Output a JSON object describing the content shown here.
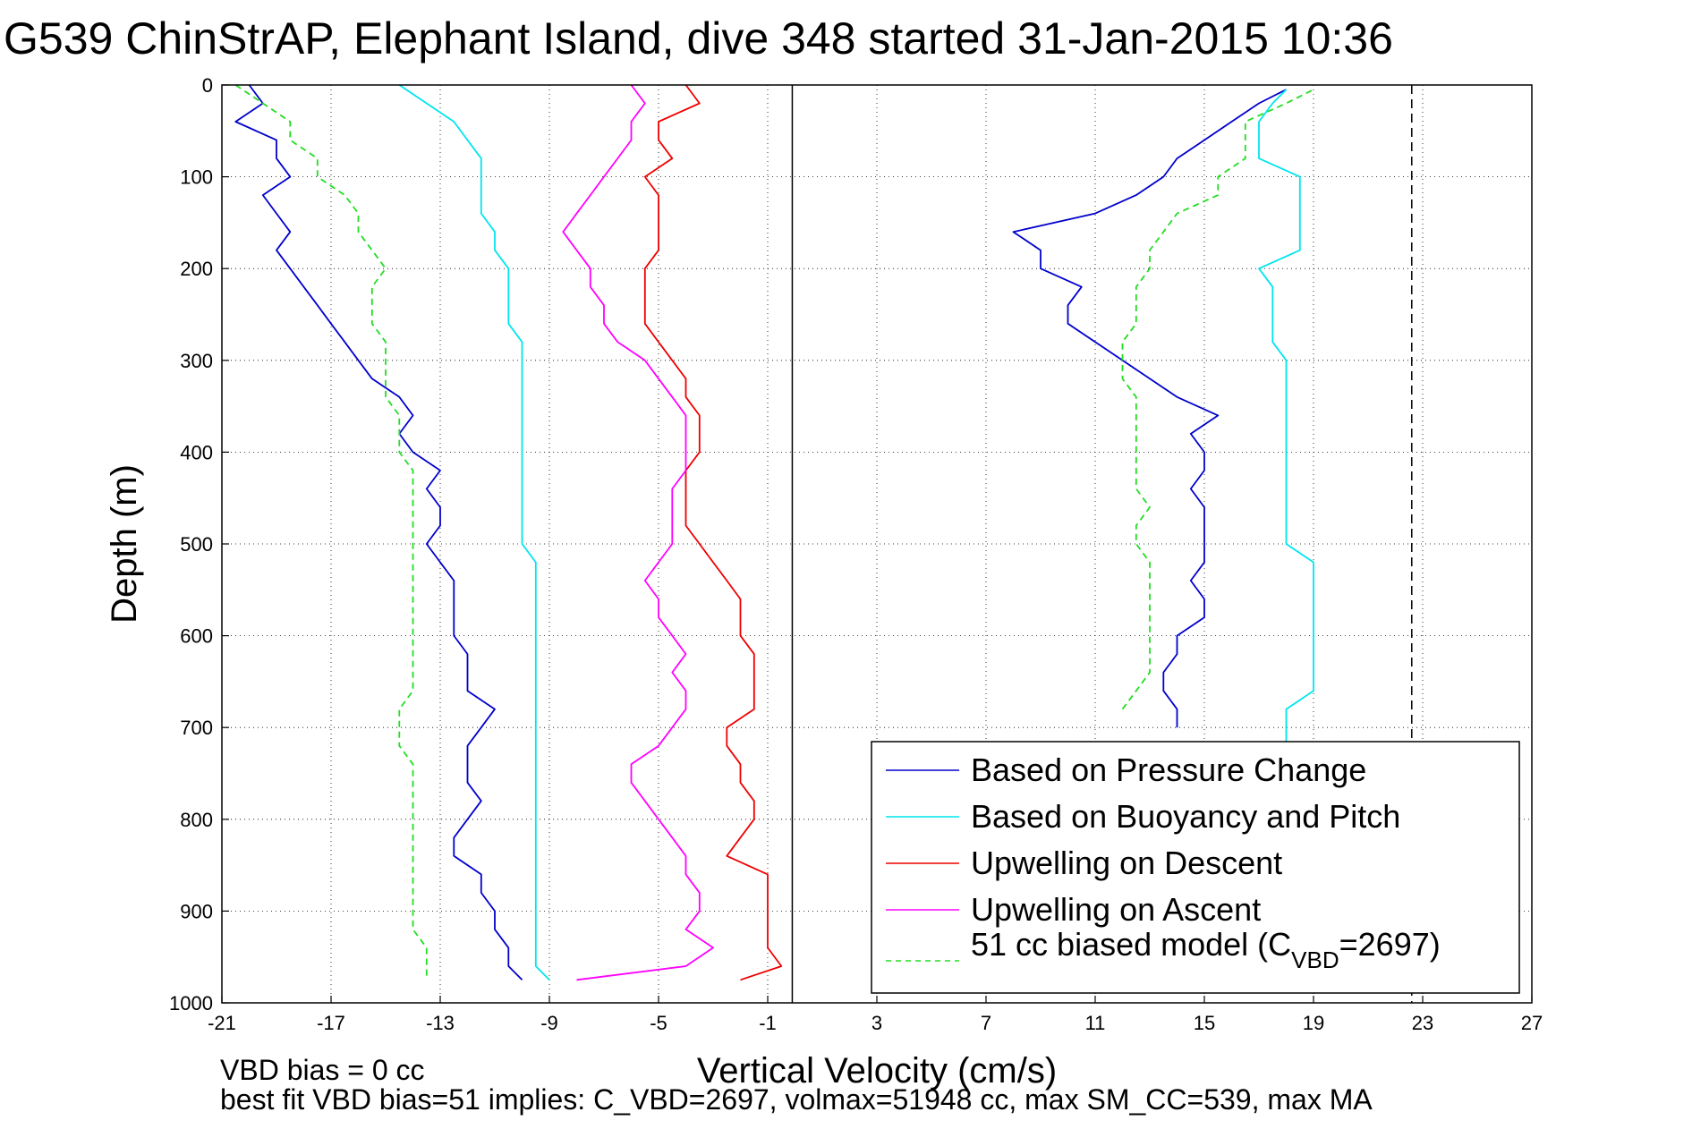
{
  "figure": {
    "title": "G539 ChinStrAP, Elephant Island, dive 348 started 31-Jan-2015 10:36",
    "footnote_1": "VBD bias = 0 cc",
    "footnote_2": "best fit VBD bias=51 implies: C_VBD=2697, volmax=51948 cc, max SM_CC=539, max MA"
  },
  "chart_data": {
    "type": "line",
    "title": "G539 ChinStrAP, Elephant Island, dive 348 started 31-Jan-2015 10:36",
    "xlabel": "Vertical Velocity (cm/s)",
    "ylabel": "Depth (m)",
    "xlim": [
      -21,
      27
    ],
    "ylim": [
      0,
      1000
    ],
    "y_reversed": true,
    "xticks": [
      -21,
      -17,
      -13,
      -9,
      -5,
      -1,
      3,
      7,
      11,
      15,
      19,
      23,
      27
    ],
    "yticks": [
      0,
      100,
      200,
      300,
      400,
      500,
      600,
      700,
      800,
      900,
      1000
    ],
    "grid": true,
    "legend_position": "bottom-right",
    "reference_lines": [
      {
        "x": -0.1,
        "style": "solid",
        "color": "#000000"
      },
      {
        "x": 22.6,
        "style": "dashed",
        "color": "#000000"
      }
    ],
    "series": [
      {
        "name": "Based on Pressure Change",
        "color": "#0000cc",
        "style": "solid",
        "depth": [
          0,
          20,
          40,
          60,
          80,
          100,
          120,
          140,
          160,
          180,
          200,
          220,
          240,
          260,
          280,
          300,
          320,
          340,
          360,
          380,
          400,
          420,
          440,
          460,
          480,
          500,
          520,
          540,
          560,
          580,
          600,
          620,
          640,
          660,
          680,
          700,
          720,
          740,
          760,
          780,
          800,
          820,
          840,
          860,
          880,
          900,
          920,
          940,
          960,
          975
        ],
        "values": [
          -20,
          -19.5,
          -20.5,
          -19,
          -19,
          -18.5,
          -19.5,
          -19,
          -18.5,
          -19,
          -18.5,
          -18,
          -17.5,
          -17,
          -16.5,
          -16,
          -15.5,
          -14.5,
          -14,
          -14.5,
          -14,
          -13,
          -13.5,
          -13,
          -13,
          -13.5,
          -13,
          -12.5,
          -12.5,
          -12.5,
          -12.5,
          -12,
          -12,
          -12,
          -11,
          -11.5,
          -12,
          -12,
          -12,
          -11.5,
          -12,
          -12.5,
          -12.5,
          -11.5,
          -11.5,
          -11,
          -11,
          -10.5,
          -10.5,
          -10
        ],
        "ascent_depth": [
          975,
          960,
          940,
          920,
          900,
          880,
          860,
          840,
          820,
          800,
          780,
          760,
          740,
          720,
          700,
          680,
          660,
          640,
          620,
          600,
          580,
          560,
          540,
          520,
          500,
          480,
          460,
          440,
          420,
          400,
          380,
          360,
          340,
          320,
          300,
          280,
          260,
          240,
          220,
          200,
          180,
          160,
          140,
          120,
          100,
          80,
          60,
          40,
          20,
          5
        ],
        "ascent_values": [
          null,
          null,
          null,
          null,
          null,
          null,
          null,
          null,
          null,
          null,
          null,
          null,
          null,
          null,
          14,
          14,
          13.5,
          13.5,
          14,
          14,
          15,
          15,
          14.5,
          15,
          15,
          15,
          15,
          14.5,
          15,
          15,
          14.5,
          15.5,
          14,
          13,
          12,
          11,
          10,
          10,
          10.5,
          9,
          9,
          8,
          11,
          12.5,
          13.5,
          14,
          15,
          16,
          17,
          18
        ]
      },
      {
        "name": "Based on Buoyancy and Pitch",
        "color": "#00e5ee",
        "style": "solid",
        "depth": [
          0,
          20,
          40,
          60,
          80,
          100,
          120,
          140,
          160,
          180,
          200,
          220,
          240,
          260,
          280,
          300,
          320,
          340,
          360,
          380,
          400,
          420,
          440,
          460,
          480,
          500,
          520,
          540,
          560,
          580,
          600,
          620,
          640,
          660,
          680,
          700,
          720,
          740,
          760,
          780,
          800,
          820,
          840,
          860,
          880,
          900,
          920,
          940,
          960,
          975
        ],
        "values": [
          -14.5,
          -13.5,
          -12.5,
          -12,
          -11.5,
          -11.5,
          -11.5,
          -11.5,
          -11,
          -11,
          -10.5,
          -10.5,
          -10.5,
          -10.5,
          -10,
          -10,
          -10,
          -10,
          -10,
          -10,
          -10,
          -10,
          -10,
          -10,
          -10,
          -10,
          -9.5,
          -9.5,
          -9.5,
          -9.5,
          -9.5,
          -9.5,
          -9.5,
          -9.5,
          -9.5,
          -9.5,
          -9.5,
          -9.5,
          -9.5,
          -9.5,
          -9.5,
          -9.5,
          -9.5,
          -9.5,
          -9.5,
          -9.5,
          -9.5,
          -9.5,
          -9.5,
          -9
        ],
        "ascent_depth": [
          720,
          700,
          680,
          660,
          640,
          620,
          600,
          580,
          560,
          540,
          520,
          500,
          480,
          460,
          440,
          420,
          400,
          380,
          360,
          340,
          320,
          300,
          280,
          260,
          240,
          220,
          200,
          180,
          160,
          140,
          120,
          100,
          80,
          60,
          40,
          20,
          5
        ],
        "ascent_values": [
          18,
          18,
          18,
          19,
          19,
          19,
          19,
          19,
          19,
          19,
          19,
          18,
          18,
          18,
          18,
          18,
          18,
          18,
          18,
          18,
          18,
          18,
          17.5,
          17.5,
          17.5,
          17.5,
          17,
          18.5,
          18.5,
          18.5,
          18.5,
          18.5,
          17,
          17,
          17,
          17.5,
          18
        ]
      },
      {
        "name": "Upwelling on Descent",
        "color": "#ee0000",
        "style": "solid",
        "depth": [
          0,
          20,
          40,
          60,
          80,
          100,
          120,
          140,
          160,
          180,
          200,
          220,
          240,
          260,
          280,
          300,
          320,
          340,
          360,
          380,
          400,
          420,
          440,
          460,
          480,
          500,
          520,
          540,
          560,
          580,
          600,
          620,
          640,
          660,
          680,
          700,
          720,
          740,
          760,
          780,
          800,
          820,
          840,
          860,
          880,
          900,
          920,
          940,
          960,
          975
        ],
        "values": [
          -4,
          -3.5,
          -5,
          -5,
          -4.5,
          -5.5,
          -5,
          -5,
          -5,
          -5,
          -5.5,
          -5.5,
          -5.5,
          -5.5,
          -5,
          -4.5,
          -4,
          -4,
          -3.5,
          -3.5,
          -3.5,
          -4,
          -4,
          -4,
          -4,
          -3.5,
          -3,
          -2.5,
          -2,
          -2,
          -2,
          -1.5,
          -1.5,
          -1.5,
          -1.5,
          -2.5,
          -2.5,
          -2,
          -2,
          -1.5,
          -1.5,
          -2,
          -2.5,
          -1,
          -1,
          -1,
          -1,
          -1,
          -0.5,
          -2
        ]
      },
      {
        "name": "Upwelling on Ascent",
        "color": "#ff00ff",
        "style": "solid",
        "depth": [
          0,
          20,
          40,
          60,
          80,
          100,
          120,
          140,
          160,
          180,
          200,
          220,
          240,
          260,
          280,
          300,
          320,
          340,
          360,
          380,
          400,
          420,
          440,
          460,
          480,
          500,
          520,
          540,
          560,
          580,
          600,
          620,
          640,
          660,
          680,
          700,
          720,
          740,
          760,
          780,
          800,
          820,
          840,
          860,
          880,
          900,
          920,
          940,
          960,
          975
        ],
        "values": [
          -6,
          -5.5,
          -6,
          -6,
          -6.5,
          -7,
          -7.5,
          -8,
          -8.5,
          -8,
          -7.5,
          -7.5,
          -7,
          -7,
          -6.5,
          -5.5,
          -5,
          -4.5,
          -4,
          -4,
          -4,
          -4,
          -4.5,
          -4.5,
          -4.5,
          -4.5,
          -5,
          -5.5,
          -5,
          -5,
          -4.5,
          -4,
          -4.5,
          -4,
          -4,
          -4.5,
          -5,
          -6,
          -6,
          -5.5,
          -5,
          -4.5,
          -4,
          -4,
          -3.5,
          -3.5,
          -4,
          -3,
          -4,
          -8
        ]
      },
      {
        "name": "51 cc biased model (C_VBD=2697)",
        "color": "#22dd22",
        "style": "dashed",
        "depth": [
          0,
          20,
          40,
          60,
          80,
          100,
          120,
          140,
          160,
          180,
          200,
          220,
          240,
          260,
          280,
          300,
          320,
          340,
          360,
          380,
          400,
          420,
          440,
          460,
          480,
          500,
          520,
          540,
          560,
          580,
          600,
          620,
          640,
          660,
          680,
          700,
          720,
          740,
          760,
          780,
          800,
          820,
          840,
          860,
          880,
          900,
          920,
          940,
          960,
          975
        ],
        "values": [
          -20.5,
          -19.5,
          -18.5,
          -18.5,
          -17.5,
          -17.5,
          -16.5,
          -16,
          -16,
          -15.5,
          -15,
          -15.5,
          -15.5,
          -15.5,
          -15,
          -15,
          -15,
          -15,
          -14.5,
          -14.5,
          -14.5,
          -14,
          -14,
          -14,
          -14,
          -14,
          -14,
          -14,
          -14,
          -14,
          -14,
          -14,
          -14,
          -14,
          -14.5,
          -14.5,
          -14.5,
          -14,
          -14,
          -14,
          -14,
          -14,
          -14,
          -14,
          -14,
          -14,
          -14,
          -13.5,
          -13.5,
          -13.5
        ],
        "ascent_depth": [
          680,
          660,
          640,
          620,
          600,
          580,
          560,
          540,
          520,
          500,
          480,
          460,
          440,
          420,
          400,
          380,
          360,
          340,
          320,
          300,
          280,
          260,
          240,
          220,
          200,
          180,
          160,
          140,
          120,
          100,
          80,
          60,
          40,
          20,
          5
        ],
        "ascent_values": [
          12,
          12.5,
          13,
          13,
          13,
          13,
          13,
          13,
          13,
          12.5,
          12.5,
          13,
          12.5,
          12.5,
          12.5,
          12.5,
          12.5,
          12.5,
          12,
          12,
          12,
          12.5,
          12.5,
          12.5,
          13,
          13,
          13.5,
          14,
          15.5,
          15.5,
          16.5,
          16.5,
          16.5,
          18,
          19
        ]
      }
    ]
  },
  "legend": {
    "items": [
      {
        "label": "Based on Pressure Change",
        "color": "#0000cc",
        "dash": ""
      },
      {
        "label": "Based on Buoyancy and Pitch",
        "color": "#00e5ee",
        "dash": ""
      },
      {
        "label": "Upwelling on Descent",
        "color": "#ee0000",
        "dash": ""
      },
      {
        "label": "Upwelling on Ascent",
        "color": "#ff00ff",
        "dash": ""
      }
    ],
    "model_prefix": "51 cc biased model (C",
    "model_subscript": "VBD",
    "model_suffix": "=2697)",
    "model_color": "#22dd22"
  }
}
